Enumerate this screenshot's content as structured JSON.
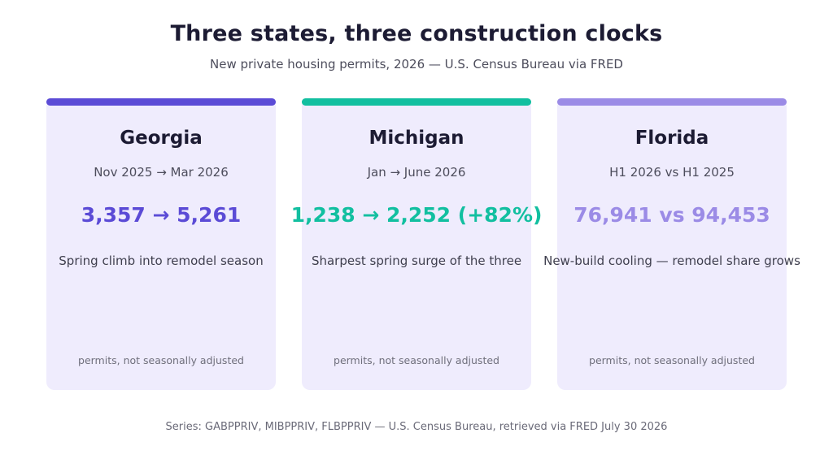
{
  "header": {
    "title": "Three states, three construction clocks",
    "subtitle": "New private housing permits, 2026 — U.S. Census Bureau via FRED"
  },
  "cards": [
    {
      "state": "Georgia",
      "period": "Nov 2025 → Mar 2026",
      "value": "3,357 → 5,261",
      "note": "Spring climb into remodel season",
      "footnote": "permits, not seasonally adjusted",
      "accent": "#5b4bd6"
    },
    {
      "state": "Michigan",
      "period": "Jan → June 2026",
      "value": "1,238 → 2,252 (+82%)",
      "note": "Sharpest spring surge of the three",
      "footnote": "permits, not seasonally adjusted",
      "accent": "#12bfa0"
    },
    {
      "state": "Florida",
      "period": "H1 2026 vs H1 2025",
      "value": "76,941 vs 94,453",
      "note": "New-build cooling — remodel share grows",
      "footnote": "permits, not seasonally adjusted",
      "accent": "#9b8be6"
    }
  ],
  "footer": {
    "source": "Series: GABPPRIV, MIBPPRIV, FLBPPRIV — U.S. Census Bureau, retrieved via FRED July 30 2026"
  }
}
